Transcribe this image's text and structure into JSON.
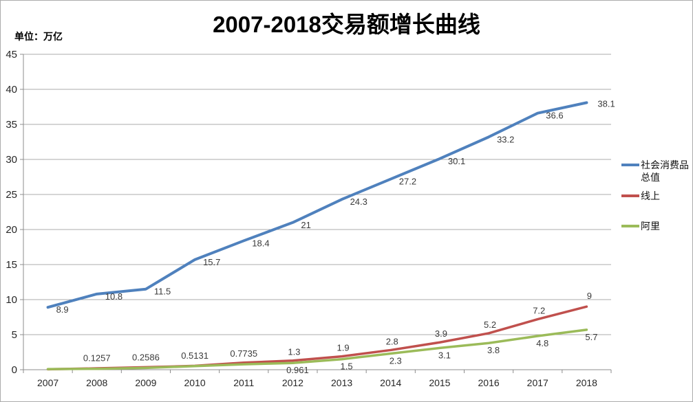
{
  "chart_data": {
    "type": "line",
    "title": "2007-2018交易额增长曲线",
    "unit_label": "单位：万亿",
    "categories": [
      "2007",
      "2008",
      "2009",
      "2010",
      "2011",
      "2012",
      "2013",
      "2014",
      "2015",
      "2016",
      "2017",
      "2018"
    ],
    "y_ticks": [
      "0",
      "5",
      "10",
      "15",
      "20",
      "25",
      "30",
      "35",
      "40",
      "45"
    ],
    "ylim": [
      0,
      45
    ],
    "grid": true,
    "legend_position": "right",
    "series": [
      {
        "name": "社会消费品总值",
        "color": "#4F81BD",
        "values": [
          8.9,
          10.8,
          11.5,
          15.7,
          18.4,
          21,
          24.3,
          27.2,
          30.1,
          33.2,
          36.6,
          38.1
        ],
        "labels": [
          "8.9",
          "10.8",
          "11.5",
          "15.7",
          "18.4",
          "21",
          "24.3",
          "27.2",
          "30.1",
          "33.2",
          "36.6",
          "38.1"
        ]
      },
      {
        "name": "线上",
        "color": "#C0504D",
        "values": [
          0.06,
          0.19,
          0.35,
          0.55,
          1.0,
          1.3,
          1.9,
          2.8,
          3.9,
          5.2,
          7.2,
          9
        ],
        "labels": [
          "",
          "",
          "",
          "",
          "",
          "1.3",
          "1.9",
          "2.8",
          "3.9",
          "5.2",
          "7.2",
          "9"
        ]
      },
      {
        "name": "阿里",
        "color": "#9BBB59",
        "values": [
          0.08,
          0.1257,
          0.2586,
          0.5131,
          0.7735,
          0.961,
          1.5,
          2.3,
          3.1,
          3.8,
          4.8,
          5.7
        ],
        "labels": [
          "",
          "0.1257",
          "0.2586",
          "0.5131",
          "0.7735",
          "0.961",
          "1.5",
          "2.3",
          "3.1",
          "3.8",
          "4.8",
          "5.7"
        ]
      }
    ]
  }
}
